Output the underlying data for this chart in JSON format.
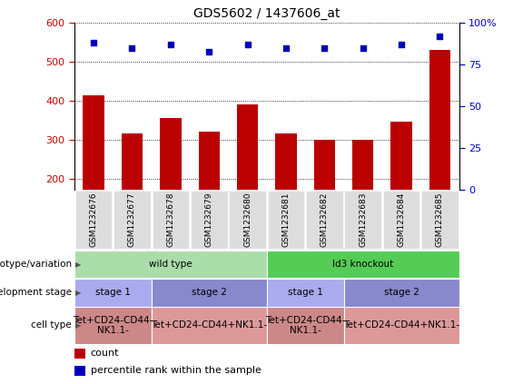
{
  "title": "GDS5602 / 1437606_at",
  "samples": [
    "GSM1232676",
    "GSM1232677",
    "GSM1232678",
    "GSM1232679",
    "GSM1232680",
    "GSM1232681",
    "GSM1232682",
    "GSM1232683",
    "GSM1232684",
    "GSM1232685"
  ],
  "counts": [
    415,
    315,
    355,
    320,
    390,
    315,
    300,
    300,
    345,
    530
  ],
  "percentiles": [
    88,
    85,
    87,
    83,
    87,
    85,
    85,
    85,
    87,
    92
  ],
  "ylim_left": [
    170,
    600
  ],
  "ylim_right": [
    0,
    100
  ],
  "yticks_left": [
    200,
    300,
    400,
    500,
    600
  ],
  "yticks_right": [
    0,
    25,
    50,
    75,
    100
  ],
  "bar_color": "#bb0000",
  "dot_color": "#0000bb",
  "bar_width": 0.55,
  "genotype_groups": [
    {
      "label": "wild type",
      "start": 0,
      "end": 5,
      "color": "#aaddaa"
    },
    {
      "label": "Id3 knockout",
      "start": 5,
      "end": 10,
      "color": "#55cc55"
    }
  ],
  "dev_stage_groups": [
    {
      "label": "stage 1",
      "start": 0,
      "end": 2,
      "color": "#aaaaee"
    },
    {
      "label": "stage 2",
      "start": 2,
      "end": 5,
      "color": "#8888cc"
    },
    {
      "label": "stage 1",
      "start": 5,
      "end": 7,
      "color": "#aaaaee"
    },
    {
      "label": "stage 2",
      "start": 7,
      "end": 10,
      "color": "#8888cc"
    }
  ],
  "cell_type_groups": [
    {
      "label": "Tet+CD24-CD44-\nNK1.1-",
      "start": 0,
      "end": 2,
      "color": "#cc8888"
    },
    {
      "label": "Tet+CD24-CD44+NK1.1-",
      "start": 2,
      "end": 5,
      "color": "#dd9999"
    },
    {
      "label": "Tet+CD24-CD44-\nNK1.1-",
      "start": 5,
      "end": 7,
      "color": "#cc8888"
    },
    {
      "label": "Tet+CD24-CD44+NK1.1-",
      "start": 7,
      "end": 10,
      "color": "#dd9999"
    }
  ],
  "row_labels": [
    "genotype/variation",
    "development stage",
    "cell type"
  ],
  "legend_items": [
    {
      "label": "count",
      "color": "#bb0000"
    },
    {
      "label": "percentile rank within the sample",
      "color": "#0000bb"
    }
  ],
  "left_axis_color": "#cc0000",
  "right_axis_color": "#0000cc",
  "tick_box_color": "#dddddd",
  "grid_color": "black"
}
